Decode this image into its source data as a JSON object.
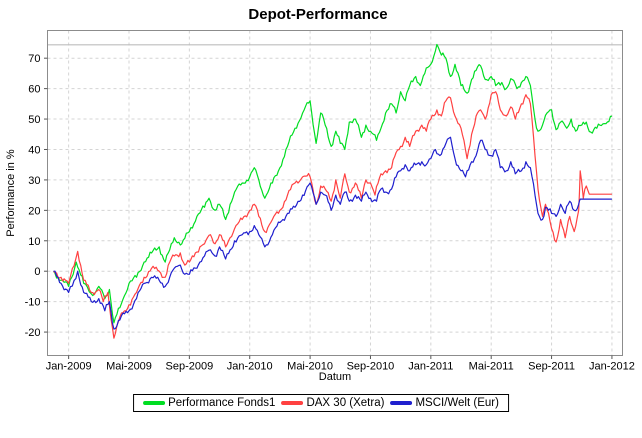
{
  "title": "Depot-Performance",
  "axes": {
    "x_label": "Datum",
    "y_label": "Performance in %"
  },
  "chart_data": {
    "type": "line",
    "title": "Depot-Performance",
    "xlabel": "Datum",
    "ylabel": "Performance in %",
    "grid": true,
    "legend_position": "bottom",
    "x_unit": "months_since_chart_start_Dec_2008",
    "x_tick_months": [
      1,
      5,
      9,
      13,
      17,
      21,
      25,
      29,
      33,
      37
    ],
    "x_tick_labels": [
      "Jan-2009",
      "Mai-2009",
      "Sep-2009",
      "Jan-2010",
      "Mai-2010",
      "Sep-2010",
      "Jan-2011",
      "Mai-2011",
      "Sep-2011",
      "Jan-2012"
    ],
    "y_ticks": [
      70,
      60,
      50,
      40,
      30,
      20,
      10,
      0,
      -10,
      -20
    ],
    "xlim": [
      -0.4,
      37.7
    ],
    "ylim": [
      -27.7,
      79.1
    ],
    "marker_line_value": 74.4,
    "gridline_color": "#d4d4d4",
    "border_color": "#8c8c8c",
    "series": [
      {
        "name": "Performance Fonds1",
        "color": "#00dd22",
        "points": [
          [
            0,
            0
          ],
          [
            0.5,
            -3
          ],
          [
            1,
            -5
          ],
          [
            1.5,
            3
          ],
          [
            2,
            -4
          ],
          [
            2.6,
            -8
          ],
          [
            3,
            -5
          ],
          [
            3.4,
            -9
          ],
          [
            3.7,
            -6
          ],
          [
            4,
            -17
          ],
          [
            4.4,
            -12
          ],
          [
            4.7,
            -8
          ],
          [
            5,
            -4
          ],
          [
            5.5,
            -2
          ],
          [
            6,
            3
          ],
          [
            6.5,
            6
          ],
          [
            7,
            8
          ],
          [
            7.4,
            3
          ],
          [
            7.7,
            7
          ],
          [
            8,
            11
          ],
          [
            8.5,
            9
          ],
          [
            9,
            13
          ],
          [
            9.5,
            18
          ],
          [
            10,
            21
          ],
          [
            10.3,
            24
          ],
          [
            10.7,
            20
          ],
          [
            11,
            22
          ],
          [
            11.4,
            17
          ],
          [
            11.7,
            22
          ],
          [
            12,
            26
          ],
          [
            12.5,
            29
          ],
          [
            13,
            31
          ],
          [
            13.3,
            34
          ],
          [
            13.6,
            30
          ],
          [
            14,
            24
          ],
          [
            14.5,
            29
          ],
          [
            15,
            34
          ],
          [
            15.5,
            41
          ],
          [
            16,
            47
          ],
          [
            16.5,
            52
          ],
          [
            17,
            56
          ],
          [
            17.4,
            42
          ],
          [
            17.7,
            52
          ],
          [
            18,
            48
          ],
          [
            18.4,
            41
          ],
          [
            18.7,
            46
          ],
          [
            19,
            42
          ],
          [
            19.3,
            40
          ],
          [
            19.6,
            49
          ],
          [
            20,
            50
          ],
          [
            20.4,
            44
          ],
          [
            20.7,
            48
          ],
          [
            21,
            46
          ],
          [
            21.4,
            43
          ],
          [
            21.7,
            47
          ],
          [
            22,
            52
          ],
          [
            22.4,
            55
          ],
          [
            22.7,
            52
          ],
          [
            23,
            59
          ],
          [
            23.3,
            56
          ],
          [
            23.6,
            61
          ],
          [
            24,
            64
          ],
          [
            24.3,
            61
          ],
          [
            24.6,
            65
          ],
          [
            25,
            68
          ],
          [
            25.4,
            74.5
          ],
          [
            25.7,
            71
          ],
          [
            26,
            70
          ],
          [
            26.3,
            64
          ],
          [
            26.6,
            68
          ],
          [
            27,
            61
          ],
          [
            27.4,
            58.5
          ],
          [
            27.7,
            63
          ],
          [
            28,
            66
          ],
          [
            28.3,
            67.5
          ],
          [
            28.6,
            63
          ],
          [
            29,
            64
          ],
          [
            29.3,
            61
          ],
          [
            29.7,
            62
          ],
          [
            30,
            60
          ],
          [
            30.4,
            63
          ],
          [
            30.7,
            60
          ],
          [
            31,
            62
          ],
          [
            31.3,
            64
          ],
          [
            31.6,
            61
          ],
          [
            31.9,
            50
          ],
          [
            32.1,
            46
          ],
          [
            32.4,
            48
          ],
          [
            32.7,
            52
          ],
          [
            33,
            53
          ],
          [
            33.3,
            46.5
          ],
          [
            33.6,
            49
          ],
          [
            34,
            47
          ],
          [
            34.3,
            50
          ],
          [
            34.6,
            46
          ],
          [
            35,
            48
          ],
          [
            35.3,
            49
          ],
          [
            35.6,
            45.7
          ],
          [
            36,
            47
          ],
          [
            36.5,
            48.5
          ],
          [
            37,
            51
          ]
        ]
      },
      {
        "name": "DAX 30 (Xetra)",
        "color": "#ff4141",
        "points": [
          [
            0,
            0
          ],
          [
            0.5,
            -2
          ],
          [
            1,
            -4
          ],
          [
            1.6,
            6.5
          ],
          [
            2,
            -3
          ],
          [
            2.5,
            -7
          ],
          [
            3,
            -6
          ],
          [
            3.3,
            -10
          ],
          [
            3.6,
            -7
          ],
          [
            4,
            -22
          ],
          [
            4.4,
            -15
          ],
          [
            4.7,
            -13
          ],
          [
            5,
            -11
          ],
          [
            5.5,
            -7
          ],
          [
            6,
            -2
          ],
          [
            6.5,
            1
          ],
          [
            7,
            0
          ],
          [
            7.4,
            -2
          ],
          [
            7.7,
            3
          ],
          [
            8,
            5
          ],
          [
            8.4,
            6
          ],
          [
            8.7,
            2
          ],
          [
            9,
            3
          ],
          [
            9.4,
            6
          ],
          [
            9.7,
            8
          ],
          [
            10,
            9
          ],
          [
            10.4,
            12
          ],
          [
            10.7,
            9
          ],
          [
            11,
            12
          ],
          [
            11.4,
            8
          ],
          [
            11.7,
            11
          ],
          [
            12,
            14
          ],
          [
            12.5,
            17
          ],
          [
            13,
            20
          ],
          [
            13.3,
            22
          ],
          [
            13.6,
            18
          ],
          [
            14,
            13
          ],
          [
            14.5,
            17
          ],
          [
            15,
            20
          ],
          [
            15.5,
            25
          ],
          [
            16,
            29
          ],
          [
            16.5,
            31
          ],
          [
            17,
            31
          ],
          [
            17.4,
            22
          ],
          [
            17.7,
            28
          ],
          [
            18,
            27
          ],
          [
            18.4,
            23
          ],
          [
            18.7,
            30
          ],
          [
            19,
            24
          ],
          [
            19.3,
            32
          ],
          [
            19.6,
            26
          ],
          [
            20,
            29
          ],
          [
            20.4,
            24
          ],
          [
            20.7,
            30
          ],
          [
            21,
            29
          ],
          [
            21.3,
            25
          ],
          [
            21.7,
            32
          ],
          [
            22,
            33
          ],
          [
            22.4,
            34
          ],
          [
            22.7,
            39
          ],
          [
            23,
            41
          ],
          [
            23.3,
            44
          ],
          [
            23.6,
            41
          ],
          [
            24,
            46
          ],
          [
            24.4,
            48
          ],
          [
            24.7,
            46
          ],
          [
            25,
            50
          ],
          [
            25.4,
            53
          ],
          [
            25.7,
            51
          ],
          [
            26,
            56
          ],
          [
            26.3,
            57
          ],
          [
            26.6,
            51
          ],
          [
            27,
            47
          ],
          [
            27.4,
            37
          ],
          [
            27.7,
            45
          ],
          [
            28,
            51
          ],
          [
            28.3,
            53
          ],
          [
            28.6,
            50
          ],
          [
            29,
            58
          ],
          [
            29.3,
            59
          ],
          [
            29.6,
            53
          ],
          [
            30,
            51
          ],
          [
            30.3,
            54
          ],
          [
            30.6,
            50
          ],
          [
            31,
            55
          ],
          [
            31.3,
            58
          ],
          [
            31.6,
            55
          ],
          [
            31.9,
            38
          ],
          [
            32.1,
            27
          ],
          [
            32.4,
            18
          ],
          [
            32.6,
            22
          ],
          [
            33,
            14
          ],
          [
            33.3,
            9.6
          ],
          [
            33.6,
            17
          ],
          [
            33.9,
            11
          ],
          [
            34.2,
            18
          ],
          [
            34.5,
            13
          ],
          [
            34.8,
            20
          ],
          [
            34.9,
            33
          ],
          [
            35.1,
            24
          ],
          [
            35.3,
            28
          ],
          [
            35.5,
            25.3
          ],
          [
            37,
            25.3
          ]
        ]
      },
      {
        "name": "MSCI/Welt (Eur)",
        "color": "#1f1fce",
        "points": [
          [
            0,
            0
          ],
          [
            0.5,
            -4
          ],
          [
            1,
            -7
          ],
          [
            1.6,
            0
          ],
          [
            2,
            -7
          ],
          [
            2.5,
            -10
          ],
          [
            3,
            -9
          ],
          [
            3.4,
            -13
          ],
          [
            3.7,
            -10
          ],
          [
            4,
            -19
          ],
          [
            4.4,
            -16
          ],
          [
            4.7,
            -14
          ],
          [
            5,
            -13
          ],
          [
            5.5,
            -9
          ],
          [
            6,
            -4
          ],
          [
            6.5,
            -2
          ],
          [
            7,
            -3
          ],
          [
            7.4,
            -5
          ],
          [
            7.7,
            -2
          ],
          [
            8,
            1
          ],
          [
            8.4,
            2
          ],
          [
            8.7,
            -1
          ],
          [
            9,
            -1
          ],
          [
            9.4,
            1
          ],
          [
            9.7,
            3
          ],
          [
            10,
            5
          ],
          [
            10.4,
            7
          ],
          [
            10.7,
            5
          ],
          [
            11,
            8
          ],
          [
            11.4,
            4
          ],
          [
            11.7,
            7
          ],
          [
            12,
            10
          ],
          [
            12.5,
            12
          ],
          [
            13,
            13
          ],
          [
            13.3,
            15
          ],
          [
            13.6,
            12
          ],
          [
            14,
            8
          ],
          [
            14.5,
            12
          ],
          [
            15,
            16
          ],
          [
            15.5,
            19
          ],
          [
            16,
            21
          ],
          [
            16.5,
            25
          ],
          [
            17,
            29
          ],
          [
            17.4,
            22
          ],
          [
            17.7,
            26
          ],
          [
            18,
            25
          ],
          [
            18.4,
            20
          ],
          [
            18.7,
            25
          ],
          [
            19,
            22
          ],
          [
            19.3,
            26
          ],
          [
            19.6,
            23
          ],
          [
            20,
            25
          ],
          [
            20.4,
            23
          ],
          [
            20.7,
            26
          ],
          [
            21,
            24
          ],
          [
            21.4,
            23
          ],
          [
            21.7,
            27
          ],
          [
            22,
            26
          ],
          [
            22.4,
            27
          ],
          [
            22.7,
            31
          ],
          [
            23,
            33
          ],
          [
            23.3,
            35
          ],
          [
            23.6,
            33
          ],
          [
            24,
            35
          ],
          [
            24.4,
            36
          ],
          [
            24.7,
            35
          ],
          [
            25,
            37
          ],
          [
            25.3,
            40
          ],
          [
            25.6,
            38
          ],
          [
            26,
            42
          ],
          [
            26.3,
            44
          ],
          [
            26.6,
            37
          ],
          [
            27,
            33
          ],
          [
            27.3,
            31
          ],
          [
            27.7,
            36
          ],
          [
            28,
            38
          ],
          [
            28.3,
            43
          ],
          [
            28.6,
            40
          ],
          [
            29,
            38
          ],
          [
            29.3,
            40
          ],
          [
            29.6,
            34
          ],
          [
            30,
            33
          ],
          [
            30.3,
            36
          ],
          [
            30.6,
            32
          ],
          [
            31,
            33
          ],
          [
            31.3,
            36
          ],
          [
            31.6,
            34
          ],
          [
            31.9,
            25
          ],
          [
            32.1,
            19
          ],
          [
            32.4,
            17
          ],
          [
            32.6,
            21
          ],
          [
            33,
            19
          ],
          [
            33.3,
            18
          ],
          [
            33.6,
            22
          ],
          [
            33.9,
            19
          ],
          [
            34.2,
            23
          ],
          [
            34.5,
            20
          ],
          [
            34.8,
            22
          ],
          [
            34.9,
            23.7
          ],
          [
            37,
            23.7
          ]
        ]
      }
    ]
  }
}
